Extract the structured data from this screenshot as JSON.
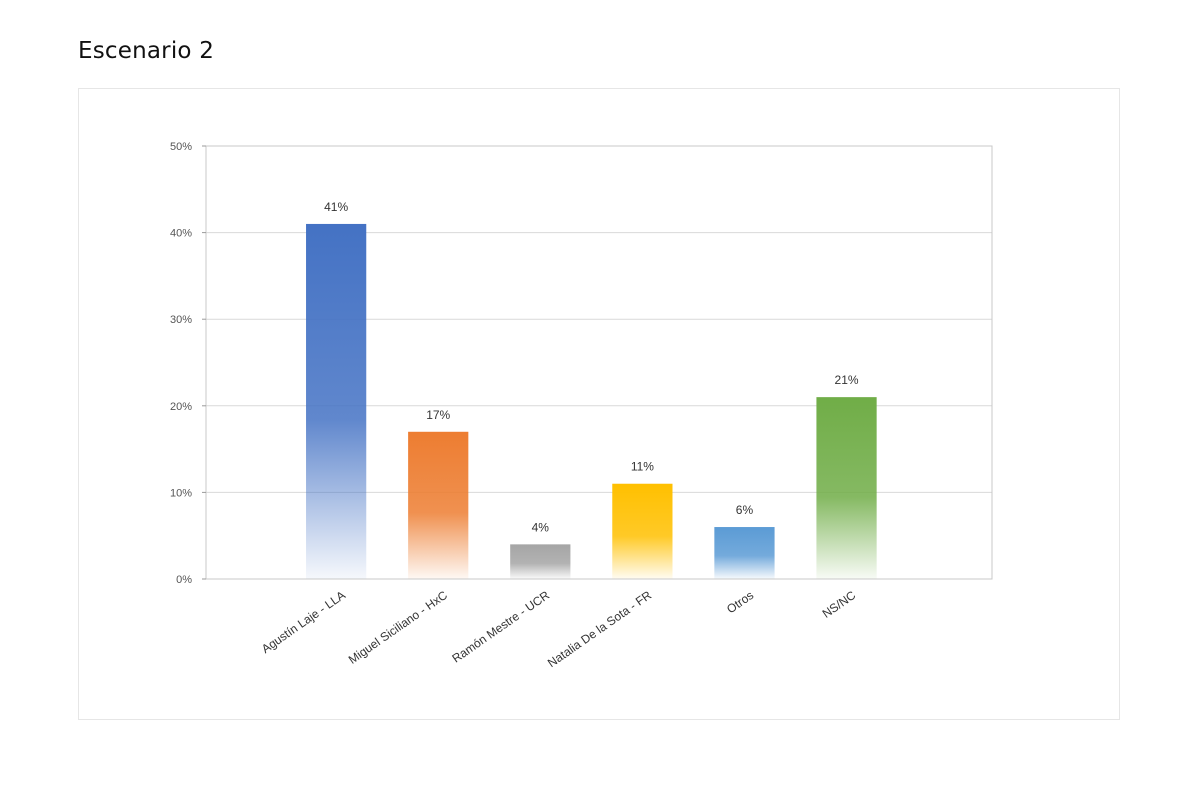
{
  "page": {
    "title": "Escenario 2"
  },
  "chart_data": {
    "type": "bar",
    "title": "",
    "xlabel": "",
    "ylabel": "",
    "ylim": [
      0,
      50
    ],
    "yticks": [
      0,
      10,
      20,
      30,
      40,
      50
    ],
    "ytick_suffix": "%",
    "grid": true,
    "legend": "none",
    "categories": [
      "Agustín Laje - LLA",
      "Miguel Siciliano - HxC",
      "Ramón Mestre - UCR",
      "Natalia De la Sota - FR",
      "Otros",
      "NS/NC"
    ],
    "values": [
      41,
      17,
      4,
      11,
      6,
      21
    ],
    "data_labels": [
      "41%",
      "17%",
      "4%",
      "11%",
      "6%",
      "21%"
    ],
    "colors": [
      "#4472c4",
      "#ed7d31",
      "#a5a5a5",
      "#ffc000",
      "#5b9bd5",
      "#70ad47"
    ]
  }
}
